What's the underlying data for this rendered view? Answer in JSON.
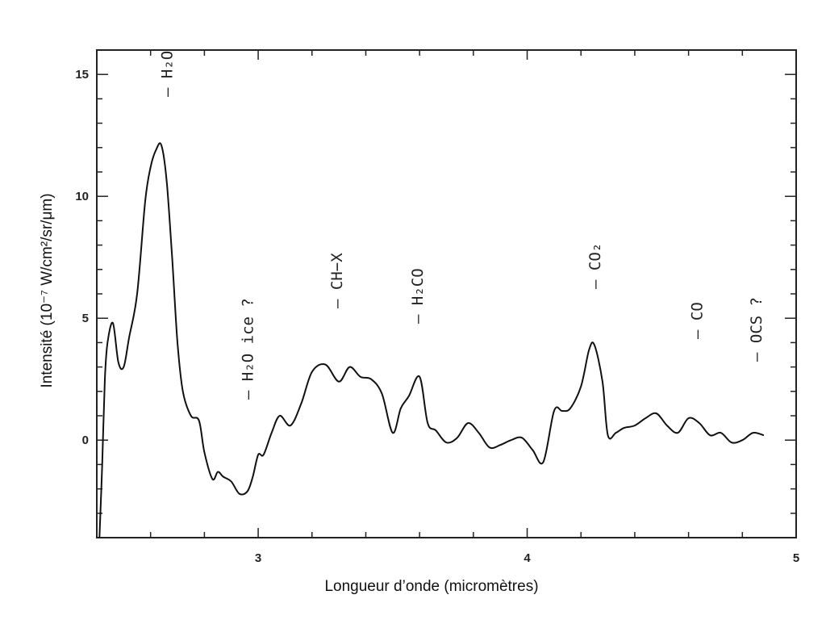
{
  "chart_data": {
    "type": "line",
    "title": "",
    "xlabel": "Longueur d’onde (micromètres)",
    "ylabel": "Intensité (10⁻⁷ W/cm²/sr/μm)",
    "xlim": [
      2.4,
      5.0
    ],
    "ylim": [
      -4,
      16
    ],
    "x_ticks": [
      3,
      4,
      5
    ],
    "y_ticks": [
      0,
      5,
      10,
      15
    ],
    "x_tick_labels": [
      "3",
      "4",
      "5"
    ],
    "y_tick_labels": [
      "0",
      "5",
      "10",
      "15"
    ],
    "grid": false,
    "series": [
      {
        "x": [
          2.41,
          2.42,
          2.43,
          2.44,
          2.46,
          2.48,
          2.5,
          2.52,
          2.55,
          2.58,
          2.6,
          2.62,
          2.64,
          2.66,
          2.68,
          2.7,
          2.72,
          2.75,
          2.78,
          2.8,
          2.83,
          2.85,
          2.87,
          2.9,
          2.93,
          2.96,
          2.98,
          3.0,
          3.02,
          3.05,
          3.08,
          3.12,
          3.16,
          3.2,
          3.25,
          3.3,
          3.34,
          3.38,
          3.42,
          3.46,
          3.5,
          3.53,
          3.56,
          3.6,
          3.63,
          3.66,
          3.7,
          3.74,
          3.78,
          3.82,
          3.86,
          3.9,
          3.94,
          3.98,
          4.02,
          4.06,
          4.1,
          4.13,
          4.16,
          4.2,
          4.23,
          4.25,
          4.28,
          4.3,
          4.33,
          4.36,
          4.4,
          4.44,
          4.48,
          4.52,
          4.56,
          4.6,
          4.64,
          4.68,
          4.72,
          4.76,
          4.8,
          4.84,
          4.88
        ],
        "y": [
          -4,
          -1,
          2.5,
          4,
          4.8,
          3.2,
          3.0,
          4.2,
          6.0,
          9.8,
          11.2,
          11.9,
          12.1,
          10.6,
          7.5,
          4.0,
          2.0,
          1.0,
          0.8,
          -0.5,
          -1.6,
          -1.3,
          -1.5,
          -1.7,
          -2.2,
          -2.1,
          -1.5,
          -0.6,
          -0.6,
          0.3,
          1.0,
          0.6,
          1.5,
          2.8,
          3.1,
          2.4,
          3.0,
          2.6,
          2.5,
          1.9,
          0.3,
          1.3,
          1.8,
          2.6,
          0.7,
          0.4,
          -0.1,
          0.1,
          0.7,
          0.3,
          -0.3,
          -0.2,
          0.0,
          0.1,
          -0.4,
          -0.9,
          1.2,
          1.2,
          1.3,
          2.2,
          3.7,
          3.9,
          2.4,
          0.2,
          0.3,
          0.5,
          0.6,
          0.9,
          1.1,
          0.6,
          0.3,
          0.9,
          0.7,
          0.2,
          0.3,
          -0.1,
          0.0,
          0.3,
          0.2
        ]
      }
    ],
    "annotations": [
      {
        "text": "H₂O",
        "x": 2.66
      },
      {
        "text": "H₂O ice ?",
        "x": 2.96
      },
      {
        "text": "CH−X",
        "x": 3.29
      },
      {
        "text": "H₂CO",
        "x": 3.59
      },
      {
        "text": "CO₂",
        "x": 4.25
      },
      {
        "text": "CO",
        "x": 4.63
      },
      {
        "text": "OCS ?",
        "x": 4.85
      }
    ],
    "colors": {
      "line": "#111111",
      "frame": "#222222"
    }
  }
}
